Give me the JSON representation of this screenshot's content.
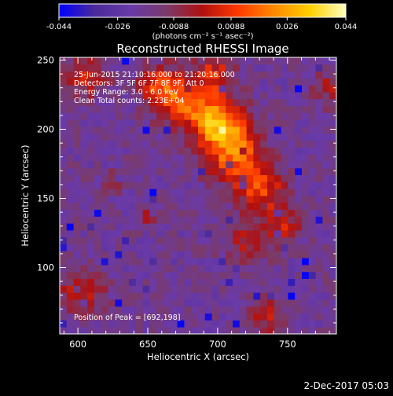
{
  "colors": {
    "background": "#000000",
    "text": "#ffffff",
    "colormap": [
      "#0000ff",
      "#4a2a9a",
      "#6a3aa8",
      "#7a3a6a",
      "#b01010",
      "#ff3a00",
      "#ff8a00",
      "#ffd000",
      "#ffffc0"
    ]
  },
  "chart_data": {
    "type": "heatmap",
    "title": "Reconstructed RHESSI Image",
    "xlabel": "Heliocentric X (arcsec)",
    "ylabel": "Heliocentric Y (arcsec)",
    "xlim": [
      587,
      785
    ],
    "ylim": [
      52,
      252
    ],
    "xticks": [
      600,
      650,
      700,
      750
    ],
    "yticks": [
      100,
      150,
      200,
      250
    ],
    "colorbar": {
      "range": [
        -0.044,
        0.044
      ],
      "ticks": [
        "-0.044",
        "-0.026",
        "-0.0088",
        "0.0088",
        "0.026",
        "0.044"
      ],
      "unit_label": "(photons cm⁻² s⁻¹ asec⁻²)"
    },
    "annotations": [
      "25-Jun-2015 21:10:16.000 to 21:20:16.000",
      "Detectors: 3F 5F 6F 7F 8F 9F, Att 0",
      "Energy Range: 3.0 - 6.0 keV",
      "Clean     Total counts: 2.23E+04"
    ],
    "peak_label": "Position of Peak = [692,198]",
    "peak": [
      692,
      198
    ],
    "emission_blobs": [
      {
        "x": 700,
        "y": 205,
        "sigma": 12,
        "amp": 0.044
      },
      {
        "x": 712,
        "y": 183,
        "sigma": 14,
        "amp": 0.034
      },
      {
        "x": 676,
        "y": 220,
        "sigma": 13,
        "amp": 0.03
      },
      {
        "x": 730,
        "y": 158,
        "sigma": 12,
        "amp": 0.028
      },
      {
        "x": 658,
        "y": 232,
        "sigma": 10,
        "amp": 0.024
      },
      {
        "x": 698,
        "y": 240,
        "sigma": 10,
        "amp": 0.022
      },
      {
        "x": 605,
        "y": 238,
        "sigma": 11,
        "amp": 0.02
      },
      {
        "x": 745,
        "y": 130,
        "sigma": 10,
        "amp": 0.02
      },
      {
        "x": 720,
        "y": 120,
        "sigma": 10,
        "amp": 0.018
      },
      {
        "x": 603,
        "y": 82,
        "sigma": 11,
        "amp": 0.022
      },
      {
        "x": 735,
        "y": 65,
        "sigma": 10,
        "amp": 0.018
      },
      {
        "x": 625,
        "y": 162,
        "sigma": 5,
        "amp": 0.012
      },
      {
        "x": 648,
        "y": 137,
        "sigma": 5,
        "amp": 0.012
      },
      {
        "x": 780,
        "y": 230,
        "sigma": 8,
        "amp": 0.016
      }
    ],
    "background_level": -0.018
  },
  "footer": {
    "date": "2-Dec-2017 05:03"
  }
}
